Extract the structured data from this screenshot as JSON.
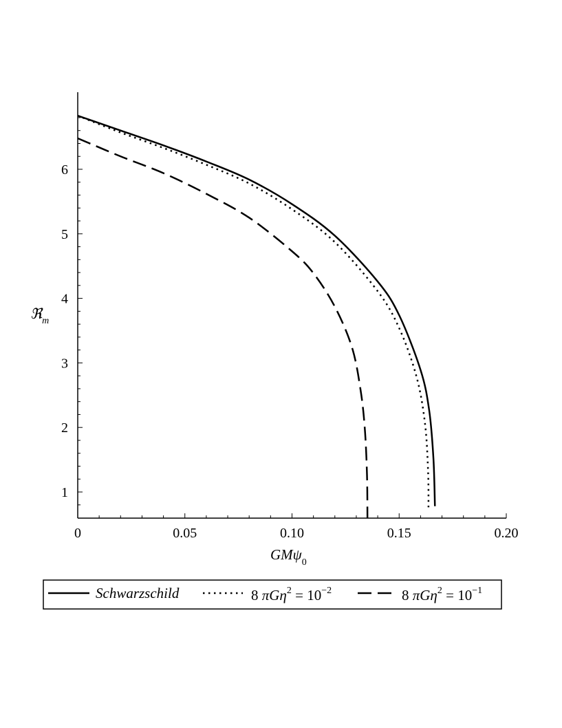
{
  "chart_data": {
    "type": "line",
    "xlabel": {
      "main": "GMψ",
      "sub": "0"
    },
    "ylabel": {
      "main": "ℜ",
      "sub": "m"
    },
    "xlim": [
      0,
      0.2
    ],
    "ylim": [
      0.6,
      6.9
    ],
    "x_ticks": [
      "0",
      "0.05",
      "0.10",
      "0.15",
      "0.20"
    ],
    "x_tick_values": [
      0,
      0.05,
      0.1,
      0.15,
      0.2
    ],
    "y_ticks": [
      "1",
      "2",
      "3",
      "4",
      "5",
      "6"
    ],
    "y_tick_values": [
      1,
      2,
      3,
      4,
      5,
      6
    ],
    "grid": false,
    "legend_position": "bottom",
    "series": [
      {
        "name": "Schwarzschild",
        "style": "solid",
        "points": [
          [
            0,
            6.83
          ],
          [
            0.02,
            6.6
          ],
          [
            0.04,
            6.37
          ],
          [
            0.06,
            6.12
          ],
          [
            0.08,
            5.84
          ],
          [
            0.1,
            5.46
          ],
          [
            0.12,
            4.97
          ],
          [
            0.14,
            4.26
          ],
          [
            0.15,
            3.74
          ],
          [
            0.16,
            2.89
          ],
          [
            0.164,
            2.27
          ],
          [
            0.166,
            1.52
          ],
          [
            0.1667,
            0.78
          ]
        ]
      },
      {
        "name": "8 πGη² = 10⁻²",
        "style": "dotted",
        "points": [
          [
            0,
            6.83
          ],
          [
            0.02,
            6.57
          ],
          [
            0.04,
            6.33
          ],
          [
            0.06,
            6.07
          ],
          [
            0.08,
            5.78
          ],
          [
            0.1,
            5.38
          ],
          [
            0.12,
            4.87
          ],
          [
            0.14,
            4.11
          ],
          [
            0.15,
            3.54
          ],
          [
            0.158,
            2.8
          ],
          [
            0.162,
            2.08
          ],
          [
            0.1635,
            1.33
          ],
          [
            0.1637,
            0.72
          ]
        ]
      },
      {
        "name": "8 πGη² = 10⁻¹",
        "style": "dashed",
        "points": [
          [
            0,
            6.48
          ],
          [
            0.02,
            6.2
          ],
          [
            0.04,
            5.94
          ],
          [
            0.06,
            5.62
          ],
          [
            0.08,
            5.25
          ],
          [
            0.1,
            4.73
          ],
          [
            0.11,
            4.39
          ],
          [
            0.12,
            3.87
          ],
          [
            0.128,
            3.24
          ],
          [
            0.132,
            2.58
          ],
          [
            0.134,
            1.97
          ],
          [
            0.135,
            1.26
          ],
          [
            0.1352,
            0.6
          ]
        ]
      }
    ],
    "legend": [
      {
        "label": "Schwarzschild",
        "italic": true
      },
      {
        "label_pre": "8 ",
        "label_pi": "πGη",
        "label_sup": "2",
        "label_post": " = 10",
        "label_exp": "−2"
      },
      {
        "label_pre": "8 ",
        "label_pi": "πGη",
        "label_sup": "2",
        "label_post": " = 10",
        "label_exp": "−1"
      }
    ]
  }
}
